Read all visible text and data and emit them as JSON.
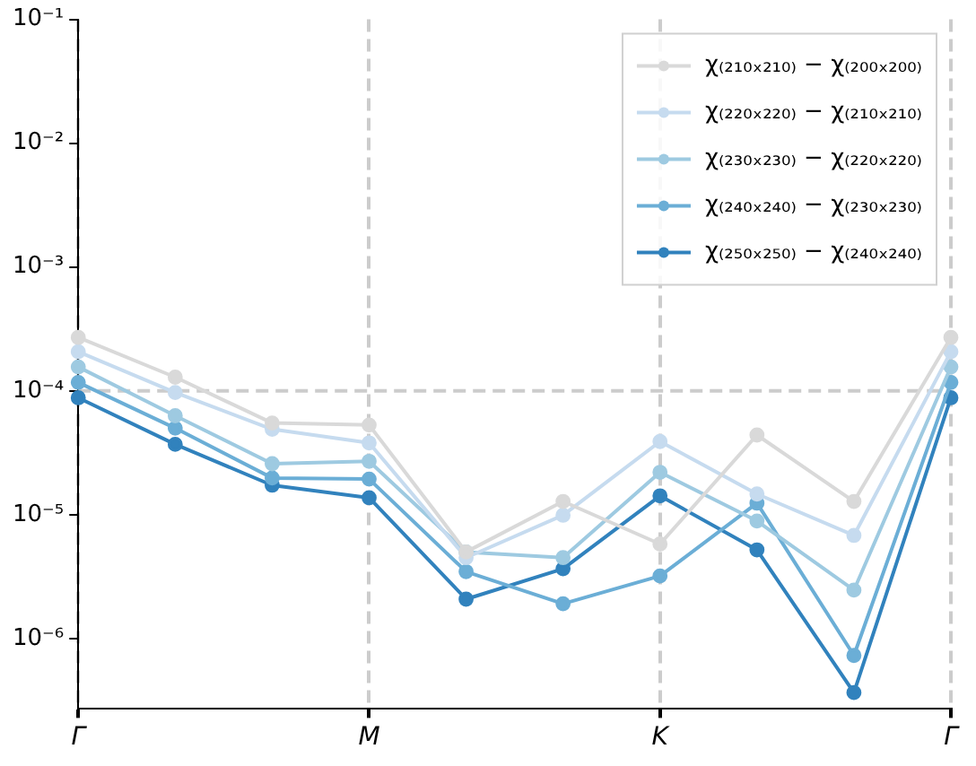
{
  "chart_data": {
    "type": "line",
    "categories": [
      "Γ",
      null,
      null,
      "M",
      null,
      null,
      "K",
      null,
      null,
      "Γ"
    ],
    "series": [
      {
        "name": "χ₍₂₁₀ₓ₂₁₀₎ − χ₍₂₀₀ₓ₂₀₀₎",
        "color": "#d9d9d9",
        "values": [
          0.00027,
          0.000129,
          5.5e-05,
          5.3e-05,
          5e-06,
          1.28e-05,
          5.8e-06,
          4.4e-05,
          1.28e-05,
          0.00027
        ]
      },
      {
        "name": "χ₍₂₂₀ₓ₂₂₀₎ − χ₍₂₁₀ₓ₂₁₀₎",
        "color": "#c6dbef",
        "values": [
          0.000207,
          9.7e-05,
          4.9e-05,
          3.8e-05,
          4.5e-06,
          9.9e-06,
          3.9e-05,
          1.47e-05,
          6.8e-06,
          0.000207
        ]
      },
      {
        "name": "χ₍₂₃₀ₓ₂₃₀₎ − χ₍₂₂₀ₓ₂₂₀₎",
        "color": "#9ecae1",
        "values": [
          0.000156,
          6.3e-05,
          2.58e-05,
          2.7e-05,
          5e-06,
          4.5e-06,
          2.2e-05,
          8.9e-06,
          2.46e-06,
          0.000156
        ]
      },
      {
        "name": "χ₍₂₄₀ₓ₂₄₀₎ − χ₍₂₃₀ₓ₂₃₀₎",
        "color": "#6baed6",
        "values": [
          0.000117,
          5e-05,
          1.98e-05,
          1.94e-05,
          3.47e-06,
          1.91e-06,
          3.2e-06,
          1.24e-05,
          7.3e-07,
          0.000117
        ]
      },
      {
        "name": "χ₍₂₅₀ₓ₂₅₀₎ − χ₍₂₄₀ₓ₂₄₀₎",
        "color": "#3182bd",
        "values": [
          8.8e-05,
          3.7e-05,
          1.73e-05,
          1.37e-05,
          2.08e-06,
          3.66e-06,
          1.42e-05,
          5.2e-06,
          3.66e-07,
          8.8e-05
        ]
      }
    ],
    "log": "y",
    "ylim": [
      2.7e-07,
      0.1
    ],
    "yticks": [
      {
        "value": 1e-06,
        "label": "10⁻⁶"
      },
      {
        "value": 1e-05,
        "label": "10⁻⁵"
      },
      {
        "value": 0.0001,
        "label": "10⁻⁴"
      },
      {
        "value": 0.001,
        "label": "10⁻³"
      },
      {
        "value": 0.01,
        "label": "10⁻²"
      },
      {
        "value": 0.1,
        "label": "10⁻¹"
      }
    ],
    "grid": "x",
    "legend": "top right",
    "marker": "circle",
    "line_style": "solid",
    "ref_lines": [
      {
        "axis": "y",
        "value": 0.0001,
        "color": "#cccccc",
        "line_style": "dashed"
      }
    ]
  }
}
